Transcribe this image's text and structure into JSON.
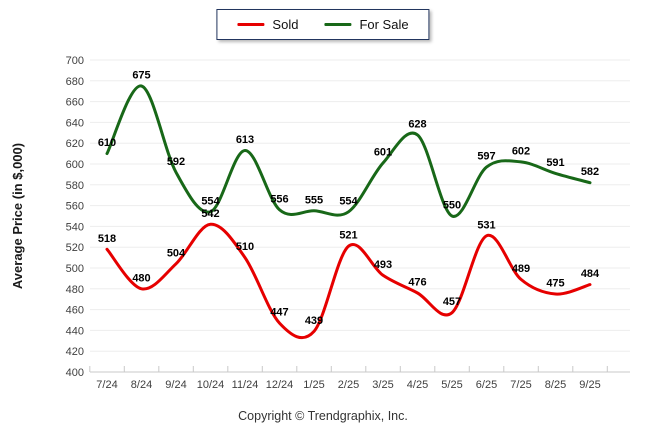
{
  "chart_data": {
    "type": "line",
    "categories": [
      "7/24",
      "8/24",
      "9/24",
      "10/24",
      "11/24",
      "12/24",
      "1/25",
      "2/25",
      "3/25",
      "4/25",
      "5/25",
      "6/25",
      "7/25",
      "8/25",
      "9/25"
    ],
    "series": [
      {
        "name": "Sold",
        "color": "#e60000",
        "values": [
          518,
          480,
          504,
          542,
          510,
          447,
          439,
          521,
          493,
          476,
          457,
          531,
          489,
          475,
          484
        ]
      },
      {
        "name": "For Sale",
        "color": "#186818",
        "values": [
          610,
          675,
          592,
          554,
          613,
          556,
          555,
          554,
          601,
          628,
          550,
          597,
          602,
          591,
          582
        ]
      }
    ],
    "title": "",
    "xlabel": "",
    "ylabel": "Average Price (in $,000)",
    "ylim": [
      400,
      700
    ],
    "ytick_step": 20,
    "grid": true,
    "legend_position": "top"
  },
  "colors": {
    "gridline": "#ededed",
    "axis": "#c9c9c9",
    "tick_text": "#3f3f3f",
    "data_label": "#000000",
    "legend_border": "#22355e"
  },
  "footer": {
    "copyright": "Copyright © Trendgraphix, Inc."
  }
}
